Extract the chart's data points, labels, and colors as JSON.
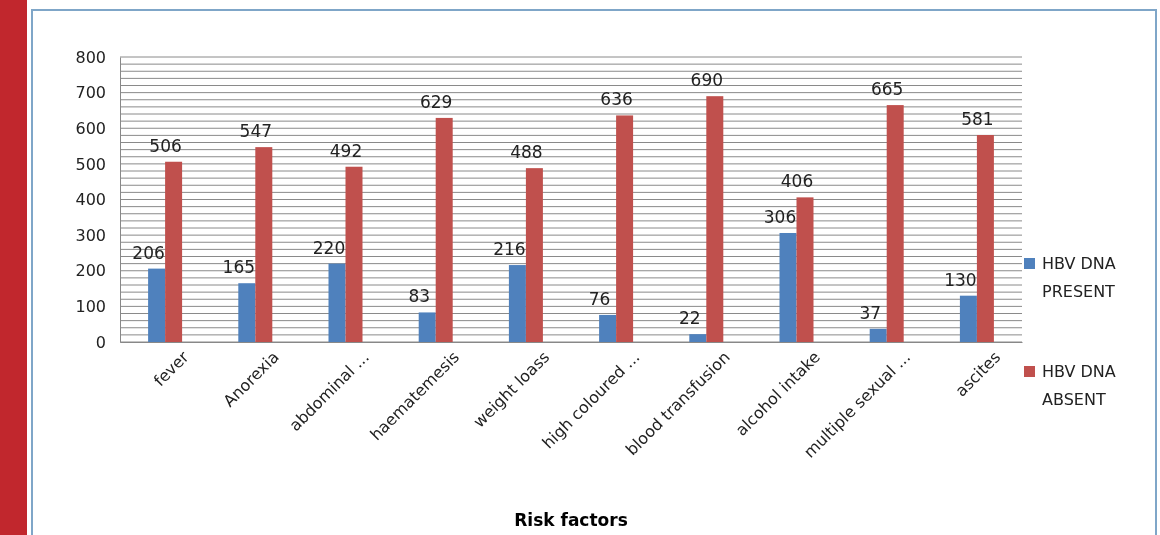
{
  "chart_data": {
    "type": "bar",
    "xlabel": "Risk factors",
    "categories": [
      "fever",
      "Anorexia",
      "abdominal ...",
      "haematemesis",
      "weight loass",
      "high coloured ...",
      "blood transfusion",
      "alcohol intake",
      "multiple sexual ...",
      "ascites"
    ],
    "series": [
      {
        "name": "HBV DNA PRESENT",
        "color": "#4f81bd",
        "values": [
          206,
          165,
          220,
          83,
          216,
          76,
          22,
          306,
          37,
          130
        ]
      },
      {
        "name": "HBV DNA ABSENT",
        "color": "#c0504d",
        "values": [
          506,
          547,
          492,
          629,
          488,
          636,
          690,
          406,
          665,
          581
        ]
      }
    ],
    "ylim": [
      0,
      800
    ],
    "yticks": [
      0,
      {
        "value": 20,
        "label": null
      },
      {
        "value": 40,
        "label": null
      },
      {
        "value": 60,
        "label": null
      },
      {
        "value": 80,
        "label": null
      },
      100,
      {
        "value": 120,
        "label": null
      },
      {
        "value": 140,
        "label": null
      },
      {
        "value": 160,
        "label": null
      },
      {
        "value": 180,
        "label": null
      },
      200,
      {
        "value": 220,
        "label": null
      },
      {
        "value": 240,
        "label": null
      },
      {
        "value": 260,
        "label": null
      },
      {
        "value": 280,
        "label": null
      },
      300,
      {
        "value": 320,
        "label": null
      },
      {
        "value": 340,
        "label": null
      },
      {
        "value": 360,
        "label": null
      },
      {
        "value": 380,
        "label": null
      },
      400,
      {
        "value": 420,
        "label": null
      },
      {
        "value": 440,
        "label": null
      },
      {
        "value": 460,
        "label": null
      },
      {
        "value": 480,
        "label": null
      },
      500,
      {
        "value": 520,
        "label": null
      },
      {
        "value": 540,
        "label": null
      },
      {
        "value": 560,
        "label": null
      },
      {
        "value": 580,
        "label": null
      },
      600,
      {
        "value": 620,
        "label": null
      },
      {
        "value": 640,
        "label": null
      },
      {
        "value": 660,
        "label": null
      },
      {
        "value": 680,
        "label": null
      },
      700,
      {
        "value": 720,
        "label": null
      },
      {
        "value": 740,
        "label": null
      },
      {
        "value": 760,
        "label": null
      },
      {
        "value": 780,
        "label": null
      },
      800
    ],
    "grid": "y",
    "legend": "right",
    "data_labels": true
  }
}
